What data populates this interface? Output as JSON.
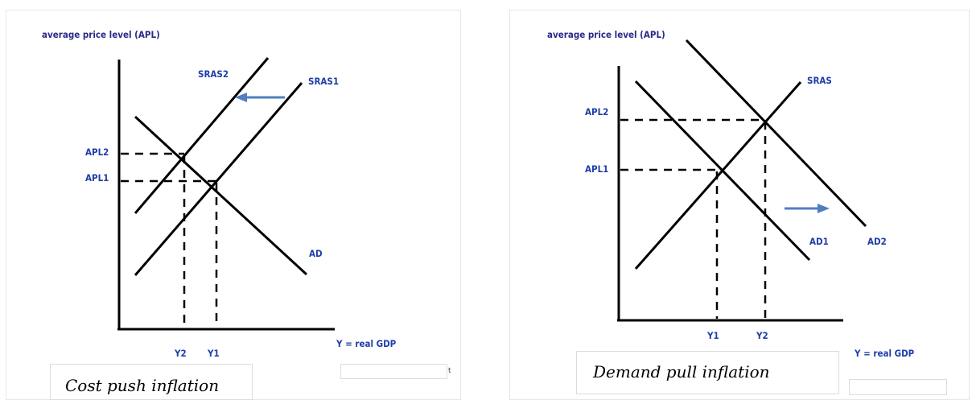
{
  "diagrams": [
    {
      "caption": "Cost  push inflation",
      "y_axis_label": "average price level (APL)",
      "x_axis_label": "Y = real GDP",
      "curve_labels": {
        "sras2": "SRAS2",
        "sras1": "SRAS1",
        "ad": "AD"
      },
      "price_labels": {
        "apl2": "APL2",
        "apl1": "APL1"
      },
      "quantity_labels": {
        "y2": "Y2",
        "y1": "Y1"
      },
      "shift_direction": "left",
      "fragment_text": "t"
    },
    {
      "caption": "Demand pull inflation",
      "y_axis_label": "average price level (APL)",
      "x_axis_label": "Y = real GDP",
      "curve_labels": {
        "sras": "SRAS",
        "ad1": "AD1",
        "ad2": "AD2"
      },
      "price_labels": {
        "apl2": "APL2",
        "apl1": "APL1"
      },
      "quantity_labels": {
        "y1": "Y1",
        "y2": "Y2"
      },
      "shift_direction": "right"
    }
  ],
  "colors": {
    "label_blue": "#1f3ea8",
    "arrow_blue": "#4f7fbf",
    "line": "#000000"
  }
}
